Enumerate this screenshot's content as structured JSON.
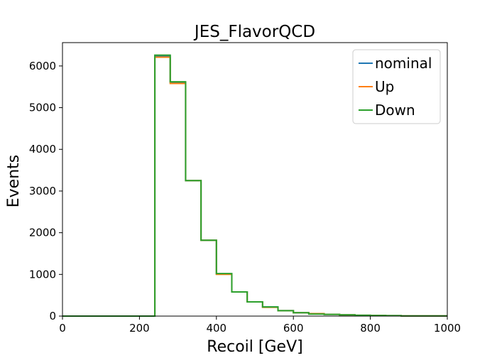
{
  "chart_data": {
    "type": "line",
    "title": "JES_FlavorQCD",
    "xlabel": "Recoil [GeV]",
    "ylabel": "Events",
    "xlim": [
      0,
      1000
    ],
    "ylim": [
      0,
      6560
    ],
    "xticks": [
      0,
      200,
      400,
      600,
      800,
      1000
    ],
    "yticks": [
      0,
      1000,
      2000,
      3000,
      4000,
      5000,
      6000
    ],
    "grid": false,
    "legend_position": "top-right",
    "step": true,
    "bin_edges": [
      0,
      40,
      80,
      120,
      160,
      200,
      240,
      280,
      320,
      360,
      400,
      440,
      480,
      520,
      560,
      600,
      640,
      680,
      720,
      760,
      800,
      840,
      880,
      920,
      960,
      1000
    ],
    "series": [
      {
        "name": "nominal",
        "color": "#1f77b4",
        "values": [
          0,
          0,
          0,
          0,
          0,
          0,
          6240,
          5600,
          3250,
          1820,
          1010,
          580,
          340,
          220,
          130,
          80,
          55,
          40,
          30,
          20,
          15,
          10,
          5,
          5,
          5
        ]
      },
      {
        "name": "Up",
        "color": "#ff7f0e",
        "values": [
          0,
          0,
          0,
          0,
          0,
          0,
          6210,
          5580,
          3250,
          1820,
          1000,
          580,
          340,
          210,
          130,
          80,
          60,
          40,
          30,
          20,
          15,
          10,
          5,
          5,
          5
        ]
      },
      {
        "name": "Down",
        "color": "#2ca02c",
        "values": [
          0,
          0,
          0,
          0,
          0,
          0,
          6260,
          5620,
          3250,
          1820,
          1020,
          580,
          340,
          220,
          130,
          80,
          50,
          40,
          30,
          20,
          15,
          10,
          5,
          5,
          5
        ]
      }
    ]
  }
}
